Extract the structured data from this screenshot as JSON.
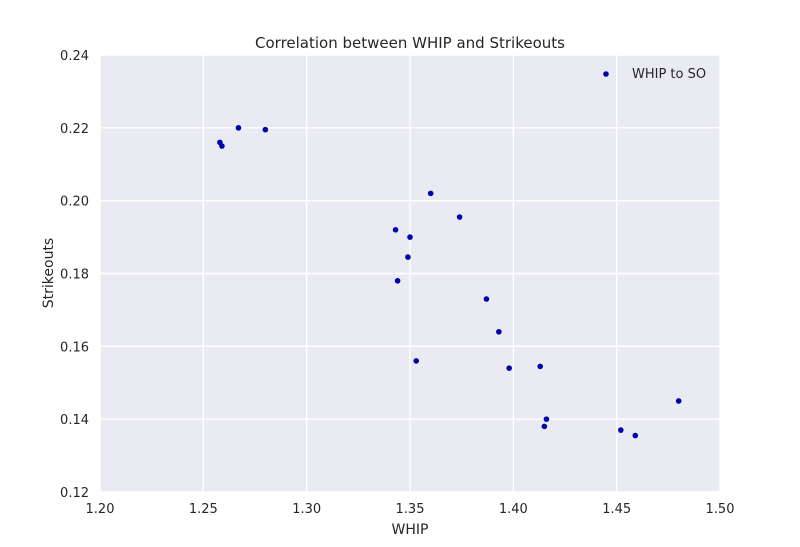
{
  "chart_data": {
    "type": "scatter",
    "title": "Correlation between WHIP and Strikeouts",
    "xlabel": "WHIP",
    "ylabel": "Strikeouts",
    "xlim": [
      1.2,
      1.5
    ],
    "ylim": [
      0.12,
      0.24
    ],
    "xticks": [
      "1.20",
      "1.25",
      "1.30",
      "1.35",
      "1.40",
      "1.45",
      "1.50"
    ],
    "yticks": [
      "0.12",
      "0.14",
      "0.16",
      "0.18",
      "0.20",
      "0.22",
      "0.24"
    ],
    "grid": true,
    "legend_position": "top-right",
    "series": [
      {
        "name": "WHIP to SO",
        "color": "#0000aa",
        "x": [
          1.258,
          1.259,
          1.267,
          1.28,
          1.343,
          1.344,
          1.349,
          1.35,
          1.353,
          1.36,
          1.374,
          1.387,
          1.393,
          1.398,
          1.413,
          1.415,
          1.416,
          1.452,
          1.459,
          1.48
        ],
        "y": [
          0.216,
          0.215,
          0.22,
          0.2195,
          0.192,
          0.178,
          0.1845,
          0.19,
          0.156,
          0.202,
          0.1955,
          0.173,
          0.164,
          0.154,
          0.1545,
          0.138,
          0.14,
          0.137,
          0.1355,
          0.145
        ]
      }
    ]
  }
}
